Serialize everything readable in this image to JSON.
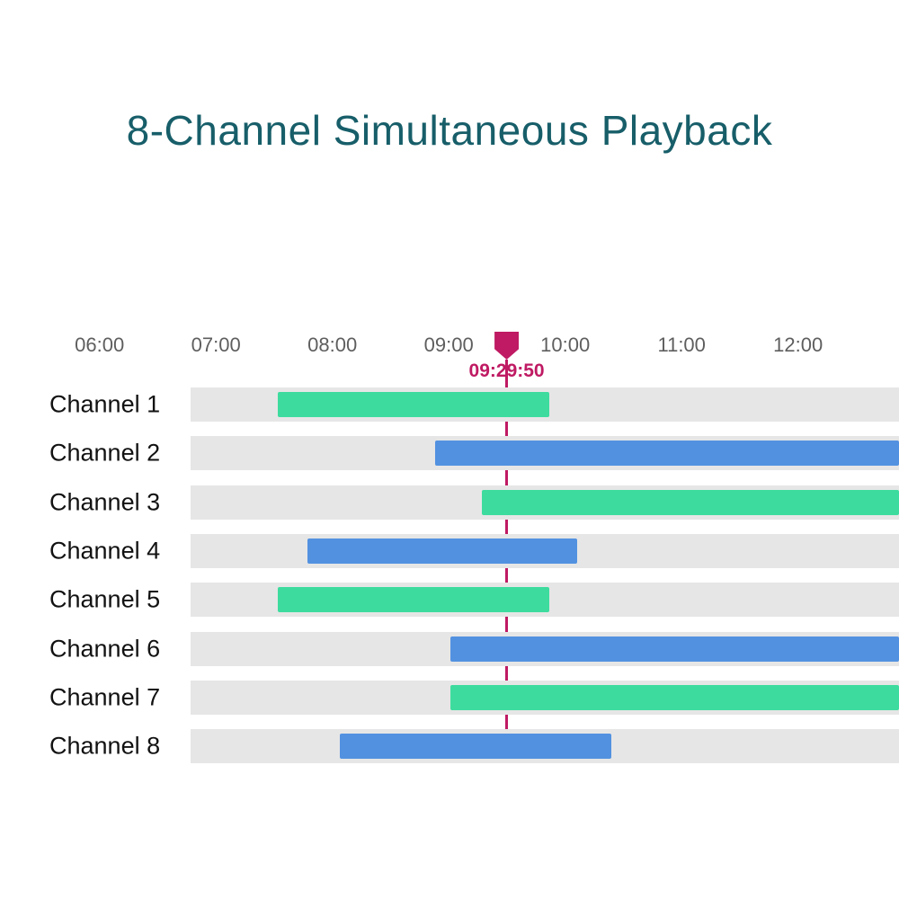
{
  "title": {
    "text": "8-Channel Simultaneous Playback"
  },
  "colors": {
    "title": "#175E69",
    "tick_label": "#5E5E5E",
    "channel_label": "#121212",
    "track": "#E6E6E6",
    "green": "#3DDC9E",
    "blue": "#5291E0",
    "playhead": "#BF1A63"
  },
  "chart_data": {
    "type": "bar",
    "variant": "gantt-timeline-horizontal",
    "title": "8-Channel Simultaneous Playback",
    "categories": [
      "Channel 1",
      "Channel 2",
      "Channel 3",
      "Channel 4",
      "Channel 5",
      "Channel 6",
      "Channel 7",
      "Channel 8"
    ],
    "x_axis": {
      "tick_labels": [
        "06:00",
        "07:00",
        "08:00",
        "09:00",
        "10:00",
        "11:00",
        "12:00"
      ],
      "visible_start": "06:47",
      "visible_end": "12:52"
    },
    "playhead": {
      "time": "09:29:50"
    },
    "bars": [
      {
        "channel": "Channel 1",
        "start": "07:32",
        "end": "09:52",
        "color_key": "green",
        "clipped_right": false
      },
      {
        "channel": "Channel 2",
        "start": "08:53",
        "end": null,
        "color_key": "blue",
        "clipped_right": true
      },
      {
        "channel": "Channel 3",
        "start": "09:17",
        "end": null,
        "color_key": "green",
        "clipped_right": true
      },
      {
        "channel": "Channel 4",
        "start": "07:47",
        "end": "10:06",
        "color_key": "blue",
        "clipped_right": false
      },
      {
        "channel": "Channel 5",
        "start": "07:32",
        "end": "09:52",
        "color_key": "green",
        "clipped_right": false
      },
      {
        "channel": "Channel 6",
        "start": "09:01",
        "end": null,
        "color_key": "blue",
        "clipped_right": true
      },
      {
        "channel": "Channel 7",
        "start": "09:01",
        "end": null,
        "color_key": "green",
        "clipped_right": true
      },
      {
        "channel": "Channel 8",
        "start": "08:04",
        "end": "10:24",
        "color_key": "blue",
        "clipped_right": false
      }
    ],
    "grid": false,
    "legend": false
  }
}
